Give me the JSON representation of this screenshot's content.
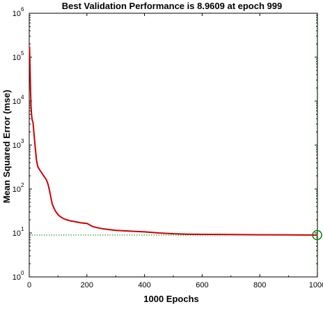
{
  "chart_data": {
    "type": "line",
    "title": "Best Validation Performance is 8.9609 at epoch 999",
    "xlabel": "1000 Epochs",
    "ylabel": "Mean Squared Error  (mse)",
    "xlim": [
      0,
      1000
    ],
    "ylim": [
      1,
      1000000
    ],
    "yscale": "log",
    "xticks": [
      "0",
      "200",
      "400",
      "600",
      "800",
      "1000"
    ],
    "yticks": [
      {
        "base": "10",
        "exp": "0"
      },
      {
        "base": "10",
        "exp": "1"
      },
      {
        "base": "10",
        "exp": "2"
      },
      {
        "base": "10",
        "exp": "3"
      },
      {
        "base": "10",
        "exp": "4"
      },
      {
        "base": "10",
        "exp": "5"
      },
      {
        "base": "10",
        "exp": "6"
      }
    ],
    "series": [
      {
        "color": "#cc0000",
        "x": [
          1,
          2,
          4,
          6,
          8,
          10,
          13,
          16,
          20,
          25,
          30,
          35,
          40,
          50,
          55,
          60,
          65,
          70,
          75,
          80,
          85,
          90,
          95,
          100,
          110,
          120,
          140,
          160,
          180,
          200,
          220,
          240,
          260,
          300,
          350,
          400,
          450,
          500,
          550,
          600,
          700,
          800,
          900,
          999
        ],
        "y": [
          170000,
          100000,
          22000,
          8000,
          5000,
          3800,
          3300,
          2000,
          1000,
          450,
          320,
          280,
          250,
          200,
          180,
          160,
          130,
          95,
          65,
          45,
          38,
          32,
          29,
          26,
          23,
          21,
          19,
          18,
          17,
          16.5,
          14,
          13,
          12.3,
          11.5,
          11,
          10.6,
          10,
          9.6,
          9.4,
          9.3,
          9.2,
          9.1,
          9.05,
          8.96
        ]
      }
    ],
    "best_line": {
      "x": 999,
      "y": 8.9609,
      "color": "#008000"
    },
    "grid": false
  }
}
